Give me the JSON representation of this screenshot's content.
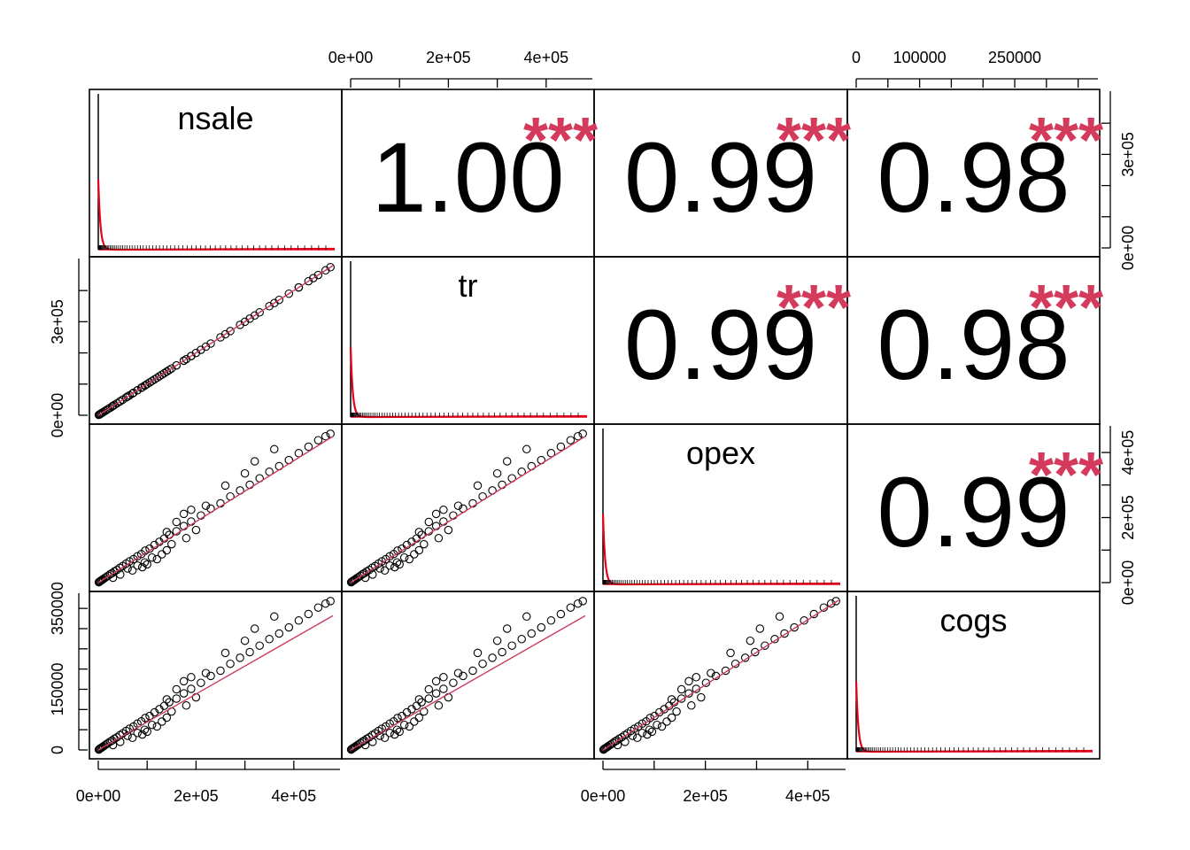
{
  "chart_data": {
    "type": "scatter",
    "variables": [
      "nsale",
      "tr",
      "opex",
      "cogs"
    ],
    "correlations": [
      {
        "row": 0,
        "col": 1,
        "value": "1.00",
        "stars": "***"
      },
      {
        "row": 0,
        "col": 2,
        "value": "0.99",
        "stars": "***"
      },
      {
        "row": 0,
        "col": 3,
        "value": "0.98",
        "stars": "***"
      },
      {
        "row": 1,
        "col": 2,
        "value": "0.99",
        "stars": "***"
      },
      {
        "row": 1,
        "col": 3,
        "value": "0.98",
        "stars": "***"
      },
      {
        "row": 2,
        "col": 3,
        "value": "0.99",
        "stars": "***"
      }
    ],
    "ranges": {
      "nsale": [
        0,
        480000
      ],
      "tr": [
        0,
        480000
      ],
      "opex": [
        0,
        460000
      ],
      "cogs": [
        0,
        370000
      ]
    },
    "axes": {
      "top": [
        {
          "col": 1,
          "ticks": [
            {
              "value": 0,
              "label": "0e+00"
            },
            {
              "value": 200000,
              "label": "2e+05"
            },
            {
              "value": 400000,
              "label": "4e+05"
            }
          ],
          "minor": [
            100000,
            300000
          ]
        },
        {
          "col": 3,
          "ticks": [
            {
              "value": 0,
              "label": "0"
            },
            {
              "value": 100000,
              "label": "100000"
            },
            {
              "value": 250000,
              "label": "250000"
            }
          ],
          "minor": [
            50000,
            150000,
            200000,
            300000,
            350000
          ]
        }
      ],
      "bottom": [
        {
          "col": 0,
          "ticks": [
            {
              "value": 0,
              "label": "0e+00"
            },
            {
              "value": 200000,
              "label": "2e+05"
            },
            {
              "value": 400000,
              "label": "4e+05"
            }
          ],
          "minor": [
            100000,
            300000
          ]
        },
        {
          "col": 2,
          "ticks": [
            {
              "value": 0,
              "label": "0e+00"
            },
            {
              "value": 200000,
              "label": "2e+05"
            },
            {
              "value": 400000,
              "label": "4e+05"
            }
          ],
          "minor": [
            100000,
            300000
          ]
        }
      ],
      "left": [
        {
          "row": 1,
          "ticks": [
            {
              "value": 0,
              "label": "0e+00"
            },
            {
              "value": 300000,
              "label": "3e+05"
            }
          ],
          "minor": [
            100000,
            200000,
            400000
          ]
        },
        {
          "row": 3,
          "ticks": [
            {
              "value": 0,
              "label": "0"
            },
            {
              "value": 150000,
              "label": "150000"
            },
            {
              "value": 350000,
              "label": "350000"
            }
          ],
          "minor": [
            50000,
            100000,
            200000,
            250000,
            300000
          ]
        }
      ],
      "right": [
        {
          "row": 0,
          "ticks": [
            {
              "value": 0,
              "label": "0e+00"
            },
            {
              "value": 300000,
              "label": "3e+05"
            }
          ],
          "minor": [
            100000,
            200000,
            400000
          ]
        },
        {
          "row": 2,
          "ticks": [
            {
              "value": 0,
              "label": "0e+00"
            },
            {
              "value": 200000,
              "label": "2e+05"
            },
            {
              "value": 400000,
              "label": "4e+05"
            }
          ],
          "minor": [
            100000,
            300000
          ]
        }
      ]
    },
    "scatter_points": [
      [
        1000,
        900
      ],
      [
        2500,
        2300
      ],
      [
        4000,
        3500
      ],
      [
        6000,
        5200
      ],
      [
        8000,
        6800
      ],
      [
        10000,
        8500
      ],
      [
        13000,
        11200
      ],
      [
        16000,
        13500
      ],
      [
        20000,
        16800
      ],
      [
        24000,
        20500
      ],
      [
        28000,
        23200
      ],
      [
        33000,
        27500
      ],
      [
        38000,
        31000
      ],
      [
        44000,
        36500
      ],
      [
        50000,
        41000
      ],
      [
        57000,
        47000
      ],
      [
        64000,
        52500
      ],
      [
        72000,
        58000
      ],
      [
        80000,
        65000
      ],
      [
        88000,
        70500
      ],
      [
        96000,
        79000
      ],
      [
        105000,
        84000
      ],
      [
        115000,
        93000
      ],
      [
        125000,
        101000
      ],
      [
        135000,
        109000
      ],
      [
        145000,
        118000
      ],
      [
        160000,
        127000
      ],
      [
        175000,
        140000
      ],
      [
        190000,
        151000
      ],
      [
        210000,
        166000
      ],
      [
        230000,
        183000
      ],
      [
        250000,
        196000
      ],
      [
        270000,
        213000
      ],
      [
        290000,
        228000
      ],
      [
        310000,
        242000
      ],
      [
        330000,
        258000
      ],
      [
        350000,
        274000
      ],
      [
        370000,
        288000
      ],
      [
        390000,
        303000
      ],
      [
        410000,
        320000
      ],
      [
        430000,
        336000
      ],
      [
        450000,
        352000
      ],
      [
        465000,
        362000
      ],
      [
        475000,
        368000
      ],
      [
        60000,
        35000
      ],
      [
        80000,
        42000
      ],
      [
        95000,
        50000
      ],
      [
        110000,
        62000
      ],
      [
        120000,
        58000
      ],
      [
        140000,
        80000
      ],
      [
        150000,
        95000
      ],
      [
        180000,
        110000
      ],
      [
        200000,
        130000
      ],
      [
        140000,
        125000
      ],
      [
        160000,
        150000
      ],
      [
        175000,
        170000
      ],
      [
        190000,
        180000
      ],
      [
        260000,
        240000
      ],
      [
        320000,
        300000
      ],
      [
        300000,
        270000
      ],
      [
        410000,
        380000
      ],
      [
        440000,
        400000
      ],
      [
        30000,
        12000
      ],
      [
        45000,
        20000
      ],
      [
        70000,
        30000
      ],
      [
        90000,
        38000
      ],
      [
        100000,
        45000
      ],
      [
        130000,
        70000
      ],
      [
        220000,
        190000
      ],
      [
        360000,
        330000
      ]
    ],
    "panel_fits": [
      {
        "row": 1,
        "col": 0,
        "slope": 1.0,
        "intercept": 0
      },
      {
        "row": 2,
        "col": 0,
        "slope": 0.85,
        "intercept": 0
      },
      {
        "row": 2,
        "col": 1,
        "slope": 0.85,
        "intercept": 0
      },
      {
        "row": 3,
        "col": 0,
        "slope": 0.78,
        "intercept": 0
      },
      {
        "row": 3,
        "col": 1,
        "slope": 0.78,
        "intercept": 0
      },
      {
        "row": 3,
        "col": 2,
        "slope": 0.88,
        "intercept": 0
      }
    ],
    "colors": {
      "points": "#000000",
      "fit": "#cd3c5a",
      "stars": "#d43a5c",
      "density": "#e8001a",
      "rug": "#000000"
    },
    "title": "",
    "legend": "none",
    "grid": false
  }
}
